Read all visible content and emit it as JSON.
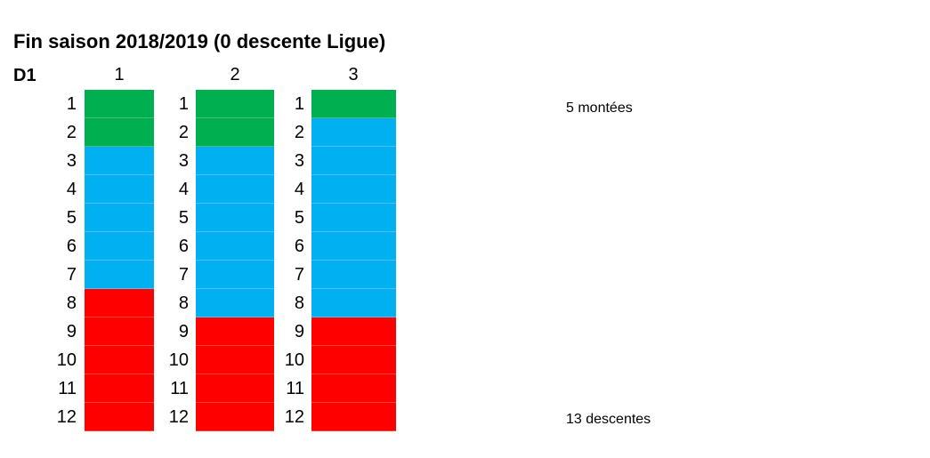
{
  "title": "Fin saison 2018/2019 (0 descente Ligue)",
  "division_label": "D1",
  "colors": {
    "promotion": "#00b050",
    "stay": "#00b0f0",
    "relegation": "#ff0000"
  },
  "groups": [
    {
      "label": "1",
      "ranks": [
        "1",
        "2",
        "3",
        "4",
        "5",
        "6",
        "7",
        "8",
        "9",
        "10",
        "11",
        "12"
      ],
      "status": [
        "promotion",
        "promotion",
        "stay",
        "stay",
        "stay",
        "stay",
        "stay",
        "relegation",
        "relegation",
        "relegation",
        "relegation",
        "relegation"
      ]
    },
    {
      "label": "2",
      "ranks": [
        "1",
        "2",
        "3",
        "4",
        "5",
        "6",
        "7",
        "8",
        "9",
        "10",
        "11",
        "12"
      ],
      "status": [
        "promotion",
        "promotion",
        "stay",
        "stay",
        "stay",
        "stay",
        "stay",
        "stay",
        "relegation",
        "relegation",
        "relegation",
        "relegation"
      ]
    },
    {
      "label": "3",
      "ranks": [
        "1",
        "2",
        "3",
        "4",
        "5",
        "6",
        "7",
        "8",
        "9",
        "10",
        "11",
        "12"
      ],
      "status": [
        "promotion",
        "stay",
        "stay",
        "stay",
        "stay",
        "stay",
        "stay",
        "stay",
        "relegation",
        "relegation",
        "relegation",
        "relegation"
      ]
    }
  ],
  "notes": {
    "promotions": "5 montées",
    "relegations": "13 descentes"
  }
}
